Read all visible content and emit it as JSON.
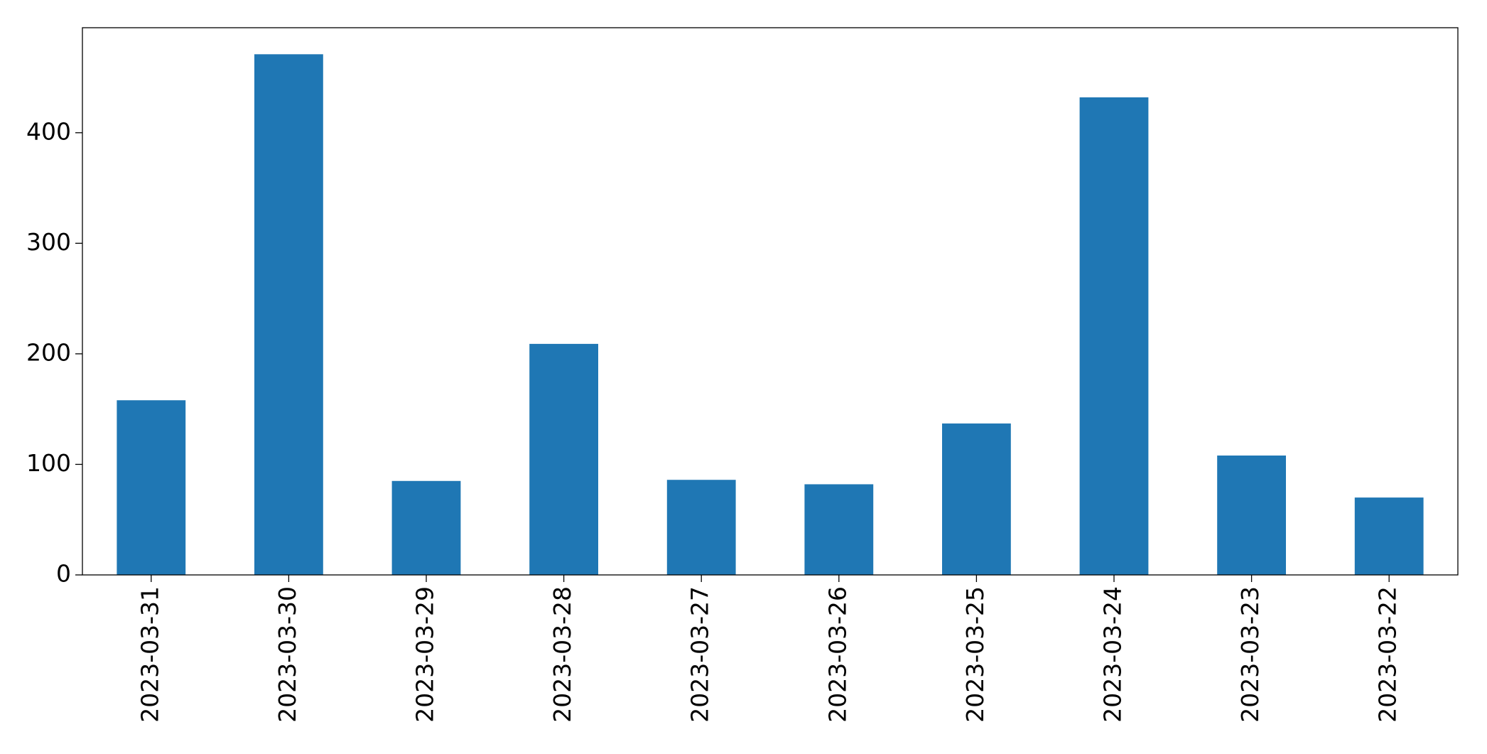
{
  "chart_data": {
    "type": "bar",
    "categories": [
      "2023-03-31",
      "2023-03-30",
      "2023-03-29",
      "2023-03-28",
      "2023-03-27",
      "2023-03-26",
      "2023-03-25",
      "2023-03-24",
      "2023-03-23",
      "2023-03-22"
    ],
    "values": [
      158,
      471,
      85,
      209,
      86,
      82,
      137,
      432,
      108,
      70
    ],
    "color": "#1f77b4",
    "ylim": [
      0,
      495
    ],
    "yticks": [
      0,
      100,
      200,
      300,
      400
    ],
    "grid": false
  }
}
